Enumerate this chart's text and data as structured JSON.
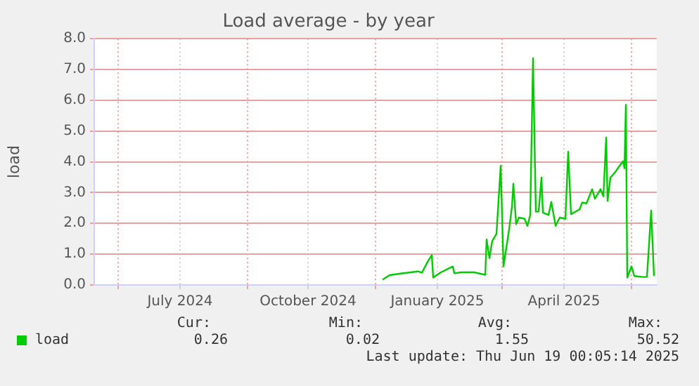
{
  "chart_data": {
    "type": "line",
    "title": "Load average - by year",
    "ylabel": "load",
    "x": [
      "2024-12-06",
      "2024-12-11",
      "2024-12-19",
      "2024-12-31",
      "2025-01-03",
      "2025-01-07",
      "2025-01-10",
      "2025-01-11",
      "2025-01-16",
      "2025-01-25",
      "2025-01-26",
      "2025-01-31",
      "2025-02-09",
      "2025-02-17",
      "2025-02-18",
      "2025-02-20",
      "2025-02-22",
      "2025-02-25",
      "2025-02-28",
      "2025-03-02",
      "2025-03-06",
      "2025-03-08",
      "2025-03-09",
      "2025-03-11",
      "2025-03-13",
      "2025-03-17",
      "2025-03-19",
      "2025-03-21",
      "2025-03-23",
      "2025-03-25",
      "2025-03-27",
      "2025-03-29",
      "2025-03-30",
      "2025-04-03",
      "2025-04-05",
      "2025-04-08",
      "2025-04-11",
      "2025-04-15",
      "2025-04-17",
      "2025-04-19",
      "2025-04-25",
      "2025-04-27",
      "2025-04-30",
      "2025-05-04",
      "2025-05-06",
      "2025-05-10",
      "2025-05-12",
      "2025-05-14",
      "2025-05-15",
      "2025-05-17",
      "2025-05-20",
      "2025-05-24",
      "2025-05-26",
      "2025-05-27",
      "2025-05-28",
      "2025-05-29",
      "2025-06-01",
      "2025-06-03",
      "2025-06-09",
      "2025-06-12",
      "2025-06-15",
      "2025-06-17"
    ],
    "series": [
      {
        "name": "load",
        "color": "#00cc00",
        "values": [
          0.17,
          0.32,
          0.37,
          0.44,
          0.4,
          0.75,
          0.97,
          0.24,
          0.4,
          0.6,
          0.38,
          0.41,
          0.41,
          0.33,
          1.48,
          0.87,
          1.43,
          1.66,
          3.87,
          0.6,
          1.81,
          2.54,
          3.29,
          1.97,
          2.19,
          2.15,
          1.92,
          2.27,
          7.37,
          2.38,
          2.39,
          3.49,
          2.35,
          2.27,
          2.7,
          1.92,
          2.19,
          2.15,
          4.33,
          2.3,
          2.45,
          2.68,
          2.65,
          3.11,
          2.8,
          3.11,
          2.88,
          4.79,
          2.73,
          3.49,
          3.64,
          3.9,
          4.02,
          3.79,
          5.85,
          0.24,
          0.6,
          0.29,
          0.26,
          0.26,
          2.42,
          0.29
        ]
      }
    ],
    "xlim": [
      "2024-05-15",
      "2025-06-19"
    ],
    "xticks": [
      {
        "value": "2024-06-01",
        "label": null
      },
      {
        "value": "2024-07-15",
        "label": "July 2024"
      },
      {
        "value": "2024-09-01",
        "label": null
      },
      {
        "value": "2024-10-14",
        "label": "October 2024"
      },
      {
        "value": "2024-12-01",
        "label": null
      },
      {
        "value": "2025-01-14",
        "label": "January 2025"
      },
      {
        "value": "2025-03-01",
        "label": null
      },
      {
        "value": "2025-04-14",
        "label": "April 2025"
      },
      {
        "value": "2025-06-01",
        "label": null
      }
    ],
    "ylim": [
      0,
      8
    ],
    "yticks": [
      {
        "value": 0,
        "label": "0.0"
      },
      {
        "value": 1,
        "label": "1.0"
      },
      {
        "value": 2,
        "label": "2.0"
      },
      {
        "value": 3,
        "label": "3.0"
      },
      {
        "value": 4,
        "label": "4.0"
      },
      {
        "value": 5,
        "label": "5.0"
      },
      {
        "value": 6,
        "label": "6.0"
      },
      {
        "value": 7,
        "label": "7.0"
      },
      {
        "value": 8,
        "label": "8.0"
      }
    ],
    "grid": true,
    "legend": "bottom left",
    "marker": "none",
    "line_style": "solid",
    "annotations": [
      "Cur:",
      "Min:",
      "Avg:",
      "Max:",
      "0.26",
      "0.02",
      "1.55",
      "50.52",
      "Last update: Thu Jun 19 00:05:14 2025"
    ]
  }
}
